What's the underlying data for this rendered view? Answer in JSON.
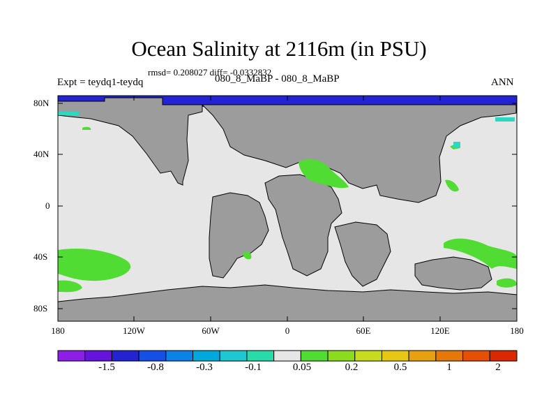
{
  "title": "Ocean Salinity at 2116m (in PSU)",
  "stats": "rmsd= 0.208027 diff= -0.0332832",
  "experiment": "Expt = teydq1-teydq",
  "period": "080_8_MaBP - 080_8_MaBP",
  "season": "ANN",
  "map": {
    "lat_ticks": [
      "80N",
      "40N",
      "0",
      "40S",
      "80S"
    ],
    "lon_ticks": [
      "180",
      "120W",
      "60W",
      "0",
      "60E",
      "120E",
      "180"
    ],
    "colors": {
      "land": "#9c9c9c",
      "ocean_near_zero": "#e6e6e6",
      "negative": "#2323d2",
      "positive": "#50dc32",
      "teal": "#2cd8c0"
    }
  },
  "colorbar": {
    "colors": [
      "#8c1ee6",
      "#6414dc",
      "#2323d2",
      "#1450e6",
      "#0a82e6",
      "#00a8dc",
      "#1ec8d2",
      "#28dcaa",
      "#e6e6e6",
      "#50dc32",
      "#8cdc1e",
      "#c8dc1e",
      "#e6c814",
      "#e6a010",
      "#e6780a",
      "#e65006",
      "#dc2800"
    ],
    "labels": [
      "-1.5",
      "-0.8",
      "-0.3",
      "-0.1",
      "0.05",
      "0.2",
      "0.5",
      "1",
      "2"
    ]
  }
}
